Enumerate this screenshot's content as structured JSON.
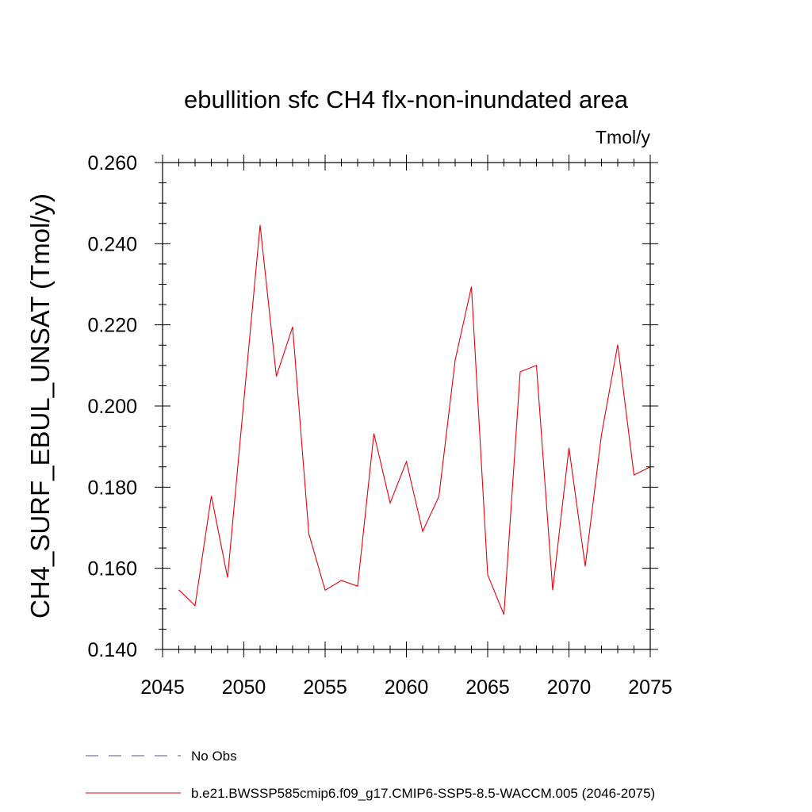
{
  "chart_data": {
    "type": "line",
    "title": "ebullition sfc CH4 flx-non-inundated area",
    "units_label": "Tmol/y",
    "xlabel": "",
    "ylabel": "CH4_SURF_EBUL_UNSAT  (Tmol/y)",
    "xlim": [
      2045,
      2075
    ],
    "ylim": [
      0.14,
      0.26
    ],
    "x_ticks": [
      2045,
      2050,
      2055,
      2060,
      2065,
      2070,
      2075
    ],
    "x_tick_labels": [
      "2045",
      "2050",
      "2055",
      "2060",
      "2065",
      "2070",
      "2075"
    ],
    "y_ticks": [
      0.14,
      0.16,
      0.18,
      0.2,
      0.22,
      0.24,
      0.26
    ],
    "y_tick_labels": [
      "0.140",
      "0.160",
      "0.180",
      "0.200",
      "0.220",
      "0.240",
      "0.260"
    ],
    "grid": false,
    "legend_position": "bottom",
    "series": [
      {
        "name": "b.e21.BWSSP585cmip6.f09_g17.CMIP6-SSP5-8.5-WACCM.005 (2046-2075)",
        "color": "#e8000b",
        "style": "solid",
        "x": [
          2046,
          2047,
          2048,
          2049,
          2050,
          2051,
          2052,
          2053,
          2054,
          2055,
          2056,
          2057,
          2058,
          2059,
          2060,
          2061,
          2062,
          2063,
          2064,
          2065,
          2066,
          2067,
          2068,
          2069,
          2070,
          2071,
          2072,
          2073,
          2074,
          2075
        ],
        "y": [
          0.1547,
          0.1508,
          0.1778,
          0.1577,
          0.2013,
          0.2446,
          0.2073,
          0.2195,
          0.1685,
          0.1546,
          0.157,
          0.1556,
          0.1932,
          0.1761,
          0.1863,
          0.1691,
          0.1777,
          0.2113,
          0.2294,
          0.1584,
          0.1486,
          0.2084,
          0.21,
          0.1546,
          0.1897,
          0.1605,
          0.1929,
          0.2151,
          0.183,
          0.185
        ]
      }
    ],
    "legend": [
      {
        "label": "No Obs",
        "color": "#5050a0",
        "style": "dashed"
      },
      {
        "label": "b.e21.BWSSP585cmip6.f09_g17.CMIP6-SSP5-8.5-WACCM.005 (2046-2075)",
        "color": "#e8000b",
        "style": "solid"
      }
    ]
  }
}
